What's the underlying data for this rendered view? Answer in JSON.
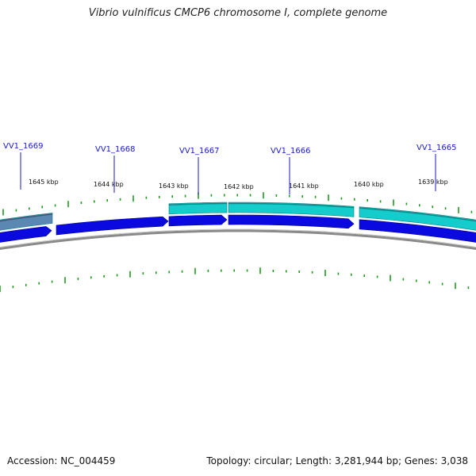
{
  "title": "Vibrio vulnificus CMCP6 chromosome I, complete genome",
  "footer": {
    "accession": "Accession: NC_004459",
    "summary": "Topology: circular; Length: 3,281,944 bp; Genes: 3,038"
  },
  "colors": {
    "forward_gene": "#0a0ae0",
    "feature_teal": "#14cccc",
    "feature_steel": "#5b87b3",
    "backbone": "#8a8a8a",
    "tick": "#1f9a1f",
    "gene_label": "#1a1acc"
  },
  "kbp_ticks": [
    "1645 kbp",
    "1644 kbp",
    "1643 kbp",
    "1642 kbp",
    "1641 kbp",
    "1640 kbp",
    "1639 kbp"
  ],
  "genes": [
    {
      "label": "VV1_1669",
      "strand": "forward",
      "feature": "steel"
    },
    {
      "label": "VV1_1668",
      "strand": "forward",
      "feature": "none"
    },
    {
      "label": "VV1_1667",
      "strand": "forward",
      "feature": "teal"
    },
    {
      "label": "VV1_1666",
      "strand": "forward",
      "feature": "teal"
    },
    {
      "label": "VV1_1665",
      "strand": "forward",
      "feature": "teal"
    }
  ]
}
